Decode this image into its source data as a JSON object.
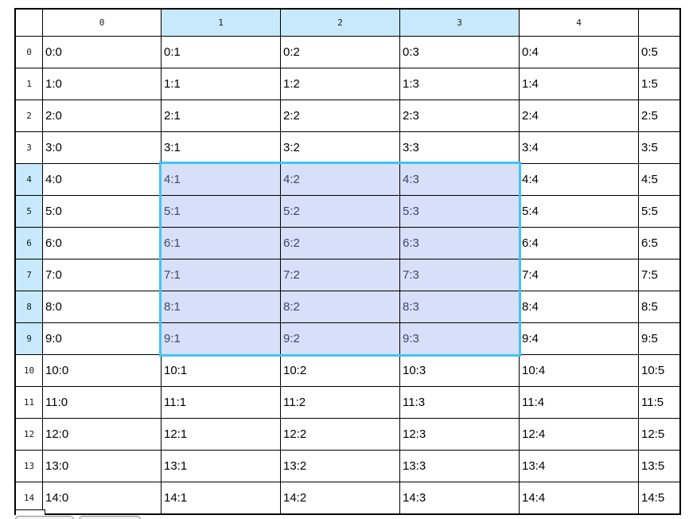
{
  "grid": {
    "column_headers": [
      "",
      "0",
      "1",
      "2",
      "3",
      "4",
      ""
    ],
    "row_headers": [
      "0",
      "1",
      "2",
      "3",
      "4",
      "5",
      "6",
      "7",
      "8",
      "9",
      "10",
      "11",
      "12",
      "13",
      "14"
    ],
    "rows": [
      [
        "0:0",
        "0:1",
        "0:2",
        "0:3",
        "0:4",
        "0:5"
      ],
      [
        "1:0",
        "1:1",
        "1:2",
        "1:3",
        "1:4",
        "1:5"
      ],
      [
        "2:0",
        "2:1",
        "2:2",
        "2:3",
        "2:4",
        "2:5"
      ],
      [
        "3:0",
        "3:1",
        "3:2",
        "3:3",
        "3:4",
        "3:5"
      ],
      [
        "4:0",
        "4:1",
        "4:2",
        "4:3",
        "4:4",
        "4:5"
      ],
      [
        "5:0",
        "5:1",
        "5:2",
        "5:3",
        "5:4",
        "5:5"
      ],
      [
        "6:0",
        "6:1",
        "6:2",
        "6:3",
        "6:4",
        "6:5"
      ],
      [
        "7:0",
        "7:1",
        "7:2",
        "7:3",
        "7:4",
        "7:5"
      ],
      [
        "8:0",
        "8:1",
        "8:2",
        "8:3",
        "8:4",
        "8:5"
      ],
      [
        "9:0",
        "9:1",
        "9:2",
        "9:3",
        "9:4",
        "9:5"
      ],
      [
        "10:0",
        "10:1",
        "10:2",
        "10:3",
        "10:4",
        "10:5"
      ],
      [
        "11:0",
        "11:1",
        "11:2",
        "11:3",
        "11:4",
        "11:5"
      ],
      [
        "12:0",
        "12:1",
        "12:2",
        "12:3",
        "12:4",
        "12:5"
      ],
      [
        "13:0",
        "13:1",
        "13:2",
        "13:3",
        "13:4",
        "13:5"
      ],
      [
        "14:0",
        "14:1",
        "14:2",
        "14:3",
        "14:4",
        "14:5"
      ]
    ],
    "selection": {
      "first_row": 4,
      "last_row": 9,
      "first_col": 1,
      "last_col": 3,
      "selected_cells": "4:1 through 9:3",
      "highlighted_column_headers": [
        "1",
        "2",
        "3"
      ],
      "highlighted_row_headers": [
        "4",
        "5",
        "6",
        "7",
        "8",
        "9"
      ]
    }
  },
  "colors": {
    "header_highlight": "#c7e9fb",
    "selection_fill": "#d8dff8",
    "selection_border": "#3fc5f4",
    "selection_text": "#39486b",
    "grid_line": "#000000",
    "outer_border": "#000000",
    "tab_border": "#888888",
    "tab_fill": "#f2f2f2"
  }
}
